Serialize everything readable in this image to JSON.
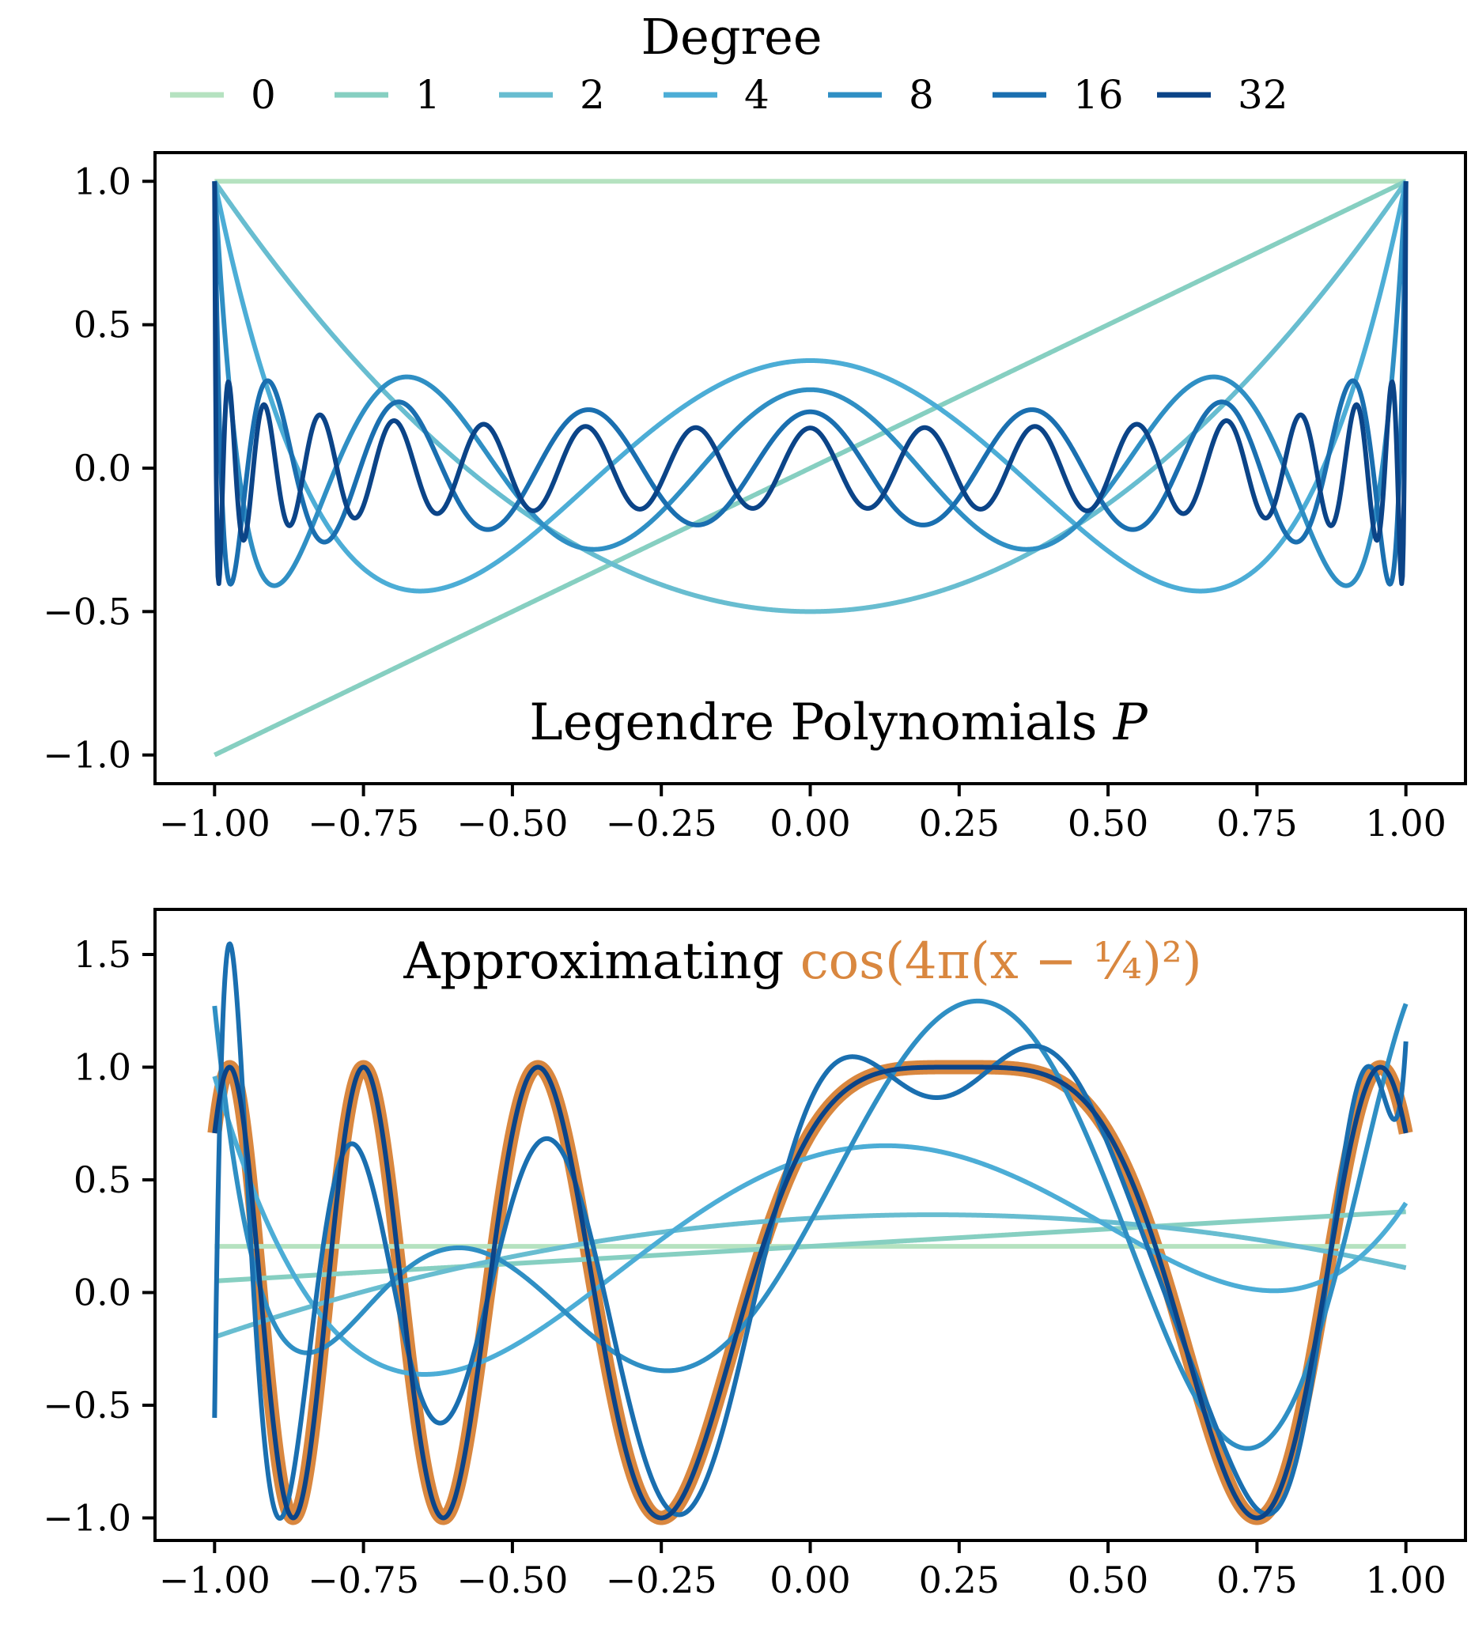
{
  "legend": {
    "title": "Degree",
    "entries": [
      {
        "label": "0",
        "degree": 0,
        "color": "#b5e2c0"
      },
      {
        "label": "1",
        "degree": 1,
        "color": "#86cfc1"
      },
      {
        "label": "2",
        "degree": 2,
        "color": "#68bdd0"
      },
      {
        "label": "4",
        "degree": 4,
        "color": "#4cadd6"
      },
      {
        "label": "8",
        "degree": 8,
        "color": "#2f8fc4"
      },
      {
        "label": "16",
        "degree": 16,
        "color": "#1a6fb0"
      },
      {
        "label": "32",
        "degree": 32,
        "color": "#0b4488"
      }
    ]
  },
  "chart_data": [
    {
      "type": "line",
      "title_text": "Legendre Polynomials",
      "title_symbol": "P",
      "title_position": "bottom-center",
      "function": "Legendre polynomial P_n(x)",
      "series": [
        {
          "name": "0",
          "degree": 0
        },
        {
          "name": "1",
          "degree": 1
        },
        {
          "name": "2",
          "degree": 2
        },
        {
          "name": "4",
          "degree": 4
        },
        {
          "name": "8",
          "degree": 8
        },
        {
          "name": "16",
          "degree": 16
        },
        {
          "name": "32",
          "degree": 32
        }
      ],
      "x_range": [
        -1.0,
        1.0
      ],
      "xlim": [
        -1.1,
        1.1
      ],
      "ylim": [
        -1.1,
        1.1
      ],
      "xticks": [
        -1.0,
        -0.75,
        -0.5,
        -0.25,
        0.0,
        0.25,
        0.5,
        0.75,
        1.0
      ],
      "xtick_labels": [
        "−1.00",
        "−0.75",
        "−0.50",
        "−0.25",
        "0.00",
        "0.25",
        "0.50",
        "0.75",
        "1.00"
      ],
      "yticks": [
        1.0,
        0.5,
        0.0,
        -0.5,
        -1.0
      ],
      "ytick_labels": [
        "1.0",
        "0.5",
        "0.0",
        "−0.5",
        "−1.0"
      ],
      "grid": false
    },
    {
      "type": "line",
      "title_prefix": "Approximating",
      "title_formula": "cos(4π(x − ¹⁄₄)²)",
      "title_position": "top-center",
      "target_function": "cos(4*pi*(x-0.25)^2)",
      "target_color": "#d9873f",
      "approximation": "least-squares Legendre expansion truncated at given degree",
      "series": [
        {
          "name": "0",
          "degree": 0
        },
        {
          "name": "1",
          "degree": 1
        },
        {
          "name": "2",
          "degree": 2
        },
        {
          "name": "4",
          "degree": 4
        },
        {
          "name": "8",
          "degree": 8
        },
        {
          "name": "16",
          "degree": 16
        },
        {
          "name": "32",
          "degree": 32
        }
      ],
      "x_range": [
        -1.0,
        1.0
      ],
      "xlim": [
        -1.1,
        1.1
      ],
      "ylim": [
        -1.1,
        1.7
      ],
      "xticks": [
        -1.0,
        -0.75,
        -0.5,
        -0.25,
        0.0,
        0.25,
        0.5,
        0.75,
        1.0
      ],
      "xtick_labels": [
        "−1.00",
        "−0.75",
        "−0.50",
        "−0.25",
        "0.00",
        "0.25",
        "0.50",
        "0.75",
        "1.00"
      ],
      "yticks": [
        1.5,
        1.0,
        0.5,
        0.0,
        -0.5,
        -1.0
      ],
      "ytick_labels": [
        "1.5",
        "1.0",
        "0.5",
        "0.0",
        "−0.5",
        "−1.0"
      ],
      "grid": false
    }
  ]
}
